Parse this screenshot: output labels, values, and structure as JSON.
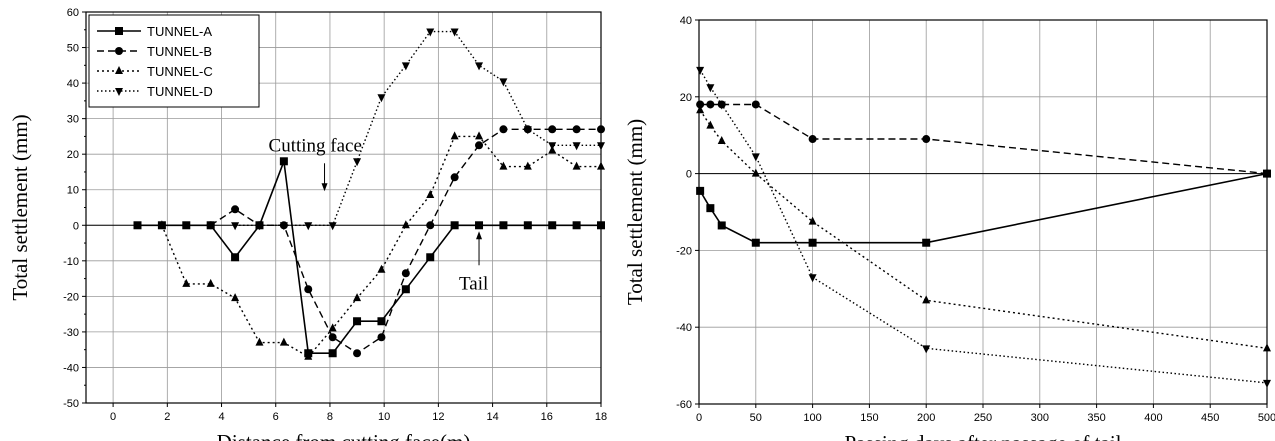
{
  "chart_data": [
    {
      "type": "line",
      "xlabel": "Distance from cutting face(m)",
      "ylabel": "Total settlement (mm)",
      "xlim": [
        -1,
        18
      ],
      "ylim": [
        -50,
        60
      ],
      "xticks": [
        0,
        2,
        4,
        6,
        8,
        10,
        12,
        14,
        16,
        18
      ],
      "yticks": [
        -50,
        -40,
        -30,
        -20,
        -10,
        0,
        10,
        20,
        30,
        40,
        50,
        60
      ],
      "grid": true,
      "legend": "top-left",
      "annotations": [
        {
          "text": "Cutting face",
          "x": 7.8,
          "y": 0
        },
        {
          "text": "Tail",
          "x": 13.5,
          "y": 0
        }
      ],
      "series": [
        {
          "name": "TUNNEL-A",
          "marker": "square",
          "dash": "solid",
          "x": [
            0.9,
            1.8,
            2.7,
            3.6,
            4.5,
            5.4,
            6.3,
            7.2,
            8.1,
            9.0,
            9.9,
            10.8,
            11.7,
            12.6,
            13.5,
            14.4,
            15.3,
            16.2,
            17.1,
            18.0
          ],
          "y": [
            0,
            0,
            0,
            0,
            -9,
            0,
            18,
            -36,
            -36,
            -27,
            -27,
            -18,
            -9,
            0,
            0,
            0,
            0,
            0,
            0,
            0
          ]
        },
        {
          "name": "TUNNEL-B",
          "marker": "circle",
          "dash": "dashed",
          "x": [
            3.6,
            4.5,
            5.4,
            6.3,
            7.2,
            8.1,
            9.0,
            9.9,
            10.8,
            11.7,
            12.6,
            13.5,
            14.4,
            15.3,
            16.2,
            17.1,
            18.0
          ],
          "y": [
            0,
            4.5,
            0,
            0,
            -18,
            -31.5,
            -36,
            -31.5,
            -13.5,
            0,
            13.5,
            22.5,
            27,
            27,
            27,
            27,
            27
          ]
        },
        {
          "name": "TUNNEL-C",
          "marker": "triangle-up",
          "dash": "dotted",
          "x": [
            1.8,
            2.7,
            3.6,
            4.5,
            5.4,
            6.3,
            7.2,
            8.1,
            9.0,
            9.9,
            10.8,
            11.7,
            12.6,
            13.5,
            14.4,
            15.3,
            16.2,
            17.1,
            18.0
          ],
          "y": [
            0,
            -16.5,
            -16.5,
            -20.5,
            -33,
            -33,
            -37,
            -29,
            -20.5,
            -12.5,
            0,
            8.5,
            25,
            25,
            16.5,
            16.5,
            21,
            16.5,
            16.5
          ]
        },
        {
          "name": "TUNNEL-D",
          "marker": "triangle-down",
          "dash": "dash-dot",
          "x": [
            4.5,
            5.4,
            6.3,
            7.2,
            8.1,
            9.0,
            9.9,
            10.8,
            11.7,
            12.6,
            13.5,
            14.4,
            15.3,
            16.2,
            17.1,
            18.0
          ],
          "y": [
            0,
            0,
            0,
            0,
            0,
            18,
            36,
            45,
            54.5,
            54.5,
            45,
            40.5,
            27,
            22.5,
            22.5,
            22.5
          ]
        }
      ]
    },
    {
      "type": "line",
      "xlabel": "Passing days after passage of tail",
      "ylabel": "Total settlement (mm)",
      "xlim": [
        0,
        500
      ],
      "ylim": [
        -60,
        40
      ],
      "xticks": [
        0,
        50,
        100,
        150,
        200,
        250,
        300,
        350,
        400,
        450,
        500
      ],
      "yticks": [
        -60,
        -40,
        -20,
        0,
        20,
        40
      ],
      "grid": true,
      "series": [
        {
          "name": "TUNNEL-A",
          "marker": "square",
          "dash": "solid",
          "x": [
            1,
            10,
            20,
            50,
            100,
            200,
            500
          ],
          "y": [
            -4.5,
            -9,
            -13.5,
            -18,
            -18,
            -18,
            0
          ]
        },
        {
          "name": "TUNNEL-B",
          "marker": "circle",
          "dash": "dashed",
          "x": [
            1,
            10,
            20,
            50,
            100,
            200,
            500
          ],
          "y": [
            18,
            18,
            18,
            18,
            9,
            9,
            0
          ]
        },
        {
          "name": "TUNNEL-C",
          "marker": "triangle-up",
          "dash": "dotted",
          "x": [
            1,
            10,
            20,
            50,
            100,
            200,
            500
          ],
          "y": [
            16.5,
            12.5,
            8.5,
            0,
            -12.5,
            -33,
            -45.5
          ]
        },
        {
          "name": "TUNNEL-D",
          "marker": "triangle-down",
          "dash": "dash-dot",
          "x": [
            1,
            10,
            20,
            50,
            100,
            200,
            500
          ],
          "y": [
            27,
            22.5,
            18,
            4.5,
            -27,
            -45.5,
            -54.5
          ]
        }
      ]
    }
  ]
}
